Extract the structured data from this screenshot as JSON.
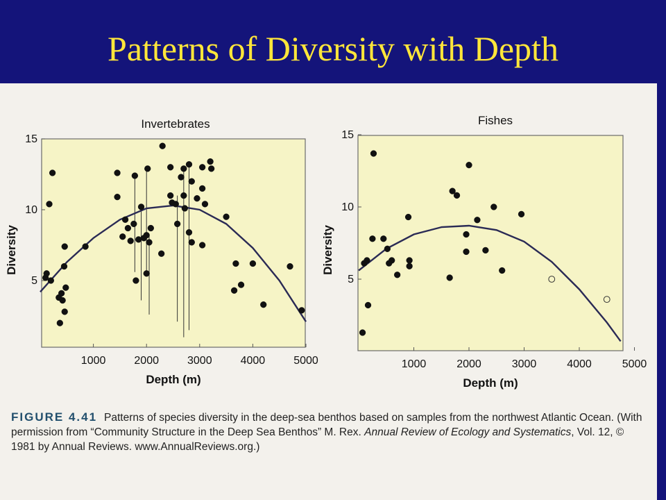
{
  "slide": {
    "title": "Patterns of Diversity with Depth"
  },
  "caption": {
    "figure_label": "FIGURE 4.41",
    "text_1": "Patterns of species diversity in the deep-sea benthos based on samples from the northwest Atlantic Ocean. (With permission from “Community Structure in the Deep Sea Benthos” M. Rex.",
    "journal": "Annual Review of Ecology and Systematics",
    "text_2": ", Vol. 12, © 1981 by Annual Reviews. www.AnnualReviews.org.)"
  },
  "colors": {
    "header_bg": "#14147a",
    "title_color": "#ffe63a",
    "panel_fill": "#f6f4c6",
    "marker": "#111111"
  },
  "chart_data": [
    {
      "type": "scatter",
      "title": "Invertebrates",
      "xlabel": "Depth (m)",
      "ylabel": "Diversity",
      "xlim": [
        0,
        5000
      ],
      "ylim": [
        0,
        15
      ],
      "xticks": [
        1000,
        2000,
        3000,
        4000,
        5000
      ],
      "yticks": [
        5,
        10,
        15
      ],
      "grid": false,
      "points": [
        {
          "x": 100,
          "y": 5.2
        },
        {
          "x": 120,
          "y": 5.5
        },
        {
          "x": 170,
          "y": 10.4
        },
        {
          "x": 230,
          "y": 12.6
        },
        {
          "x": 200,
          "y": 5.0
        },
        {
          "x": 350,
          "y": 3.8
        },
        {
          "x": 370,
          "y": 2.0
        },
        {
          "x": 400,
          "y": 4.1
        },
        {
          "x": 420,
          "y": 3.6
        },
        {
          "x": 460,
          "y": 2.8
        },
        {
          "x": 450,
          "y": 6.0
        },
        {
          "x": 480,
          "y": 4.5
        },
        {
          "x": 460,
          "y": 7.4
        },
        {
          "x": 850,
          "y": 7.4
        },
        {
          "x": 1450,
          "y": 12.6
        },
        {
          "x": 1450,
          "y": 10.9
        },
        {
          "x": 1550,
          "y": 8.1
        },
        {
          "x": 1600,
          "y": 9.3
        },
        {
          "x": 1650,
          "y": 8.7
        },
        {
          "x": 1700,
          "y": 7.8
        },
        {
          "x": 1760,
          "y": 9.0
        },
        {
          "x": 1780,
          "y": 12.4
        },
        {
          "x": 1800,
          "y": 5.0
        },
        {
          "x": 1850,
          "y": 7.9
        },
        {
          "x": 1900,
          "y": 10.2
        },
        {
          "x": 1950,
          "y": 8.0
        },
        {
          "x": 2000,
          "y": 8.2
        },
        {
          "x": 2000,
          "y": 5.5
        },
        {
          "x": 2020,
          "y": 12.9
        },
        {
          "x": 2050,
          "y": 7.7
        },
        {
          "x": 2080,
          "y": 8.7
        },
        {
          "x": 2300,
          "y": 14.5
        },
        {
          "x": 2280,
          "y": 6.9
        },
        {
          "x": 2450,
          "y": 13.0
        },
        {
          "x": 2450,
          "y": 11.0
        },
        {
          "x": 2480,
          "y": 10.5
        },
        {
          "x": 2550,
          "y": 10.4
        },
        {
          "x": 2580,
          "y": 9.0
        },
        {
          "x": 2650,
          "y": 12.3
        },
        {
          "x": 2700,
          "y": 12.9
        },
        {
          "x": 2700,
          "y": 11.0
        },
        {
          "x": 2720,
          "y": 10.1
        },
        {
          "x": 2800,
          "y": 13.2
        },
        {
          "x": 2800,
          "y": 8.4
        },
        {
          "x": 2850,
          "y": 12.0
        },
        {
          "x": 2850,
          "y": 7.7
        },
        {
          "x": 2950,
          "y": 10.8
        },
        {
          "x": 3050,
          "y": 13.0
        },
        {
          "x": 3050,
          "y": 11.5
        },
        {
          "x": 3050,
          "y": 7.5
        },
        {
          "x": 3100,
          "y": 10.4
        },
        {
          "x": 3200,
          "y": 13.4
        },
        {
          "x": 3220,
          "y": 12.9
        },
        {
          "x": 3500,
          "y": 9.5
        },
        {
          "x": 3650,
          "y": 4.3
        },
        {
          "x": 3680,
          "y": 6.2
        },
        {
          "x": 3780,
          "y": 4.7
        },
        {
          "x": 4000,
          "y": 6.2
        },
        {
          "x": 4200,
          "y": 3.3
        },
        {
          "x": 4700,
          "y": 6.0
        },
        {
          "x": 4920,
          "y": 2.9
        }
      ],
      "vertical_segments": [
        {
          "x": 1780,
          "y0": 12.4,
          "y1": 5.6
        },
        {
          "x": 1900,
          "y0": 10.2,
          "y1": 3.6
        },
        {
          "x": 2000,
          "y0": 12.9,
          "y1": 5.5
        },
        {
          "x": 2050,
          "y0": 8.2,
          "y1": 2.6
        },
        {
          "x": 2580,
          "y0": 11.0,
          "y1": 2.1
        },
        {
          "x": 2700,
          "y0": 12.9,
          "y1": 1.0
        },
        {
          "x": 2800,
          "y0": 13.2,
          "y1": 1.5
        }
      ],
      "fit_curve": [
        {
          "x": 0,
          "y": 4.2
        },
        {
          "x": 500,
          "y": 6.3
        },
        {
          "x": 1000,
          "y": 8.0
        },
        {
          "x": 1500,
          "y": 9.3
        },
        {
          "x": 2000,
          "y": 10.1
        },
        {
          "x": 2500,
          "y": 10.3
        },
        {
          "x": 3000,
          "y": 10.0
        },
        {
          "x": 3500,
          "y": 9.0
        },
        {
          "x": 4000,
          "y": 7.3
        },
        {
          "x": 4500,
          "y": 5.0
        },
        {
          "x": 5000,
          "y": 2.1
        }
      ]
    },
    {
      "type": "scatter",
      "title": "Fishes",
      "xlabel": "Depth (m)",
      "ylabel": "Diversity",
      "xlim": [
        0,
        5000
      ],
      "ylim": [
        0,
        15
      ],
      "xticks": [
        1000,
        2000,
        3000,
        4000,
        5000
      ],
      "yticks": [
        5,
        10,
        15
      ],
      "grid": false,
      "points": [
        {
          "x": 70,
          "y": 1.3,
          "filled": true
        },
        {
          "x": 100,
          "y": 6.1,
          "filled": true
        },
        {
          "x": 150,
          "y": 6.3,
          "filled": true
        },
        {
          "x": 170,
          "y": 3.2,
          "filled": true
        },
        {
          "x": 250,
          "y": 7.8,
          "filled": true
        },
        {
          "x": 270,
          "y": 13.7,
          "filled": true
        },
        {
          "x": 450,
          "y": 7.8,
          "filled": true
        },
        {
          "x": 520,
          "y": 7.1,
          "filled": true
        },
        {
          "x": 550,
          "y": 6.1,
          "filled": true
        },
        {
          "x": 600,
          "y": 6.3,
          "filled": true
        },
        {
          "x": 700,
          "y": 5.3,
          "filled": true
        },
        {
          "x": 900,
          "y": 9.3,
          "filled": true
        },
        {
          "x": 920,
          "y": 6.3,
          "filled": true
        },
        {
          "x": 920,
          "y": 5.9,
          "filled": true
        },
        {
          "x": 1650,
          "y": 5.1,
          "filled": true
        },
        {
          "x": 1700,
          "y": 11.1,
          "filled": true
        },
        {
          "x": 1780,
          "y": 10.8,
          "filled": true
        },
        {
          "x": 1950,
          "y": 8.1,
          "filled": true
        },
        {
          "x": 1950,
          "y": 6.9,
          "filled": true
        },
        {
          "x": 2000,
          "y": 12.9,
          "filled": true
        },
        {
          "x": 2150,
          "y": 9.1,
          "filled": true
        },
        {
          "x": 2300,
          "y": 7.0,
          "filled": true
        },
        {
          "x": 2450,
          "y": 10.0,
          "filled": true
        },
        {
          "x": 2600,
          "y": 5.6,
          "filled": true
        },
        {
          "x": 2950,
          "y": 9.5,
          "filled": true
        },
        {
          "x": 3500,
          "y": 5.0,
          "filled": false
        },
        {
          "x": 4500,
          "y": 3.6,
          "filled": false
        }
      ],
      "fit_curve": [
        {
          "x": 0,
          "y": 5.6
        },
        {
          "x": 500,
          "y": 7.1
        },
        {
          "x": 1000,
          "y": 8.1
        },
        {
          "x": 1500,
          "y": 8.6
        },
        {
          "x": 2000,
          "y": 8.7
        },
        {
          "x": 2500,
          "y": 8.4
        },
        {
          "x": 3000,
          "y": 7.6
        },
        {
          "x": 3500,
          "y": 6.2
        },
        {
          "x": 4000,
          "y": 4.3
        },
        {
          "x": 4500,
          "y": 2.0
        },
        {
          "x": 4750,
          "y": 0.7
        }
      ]
    }
  ]
}
